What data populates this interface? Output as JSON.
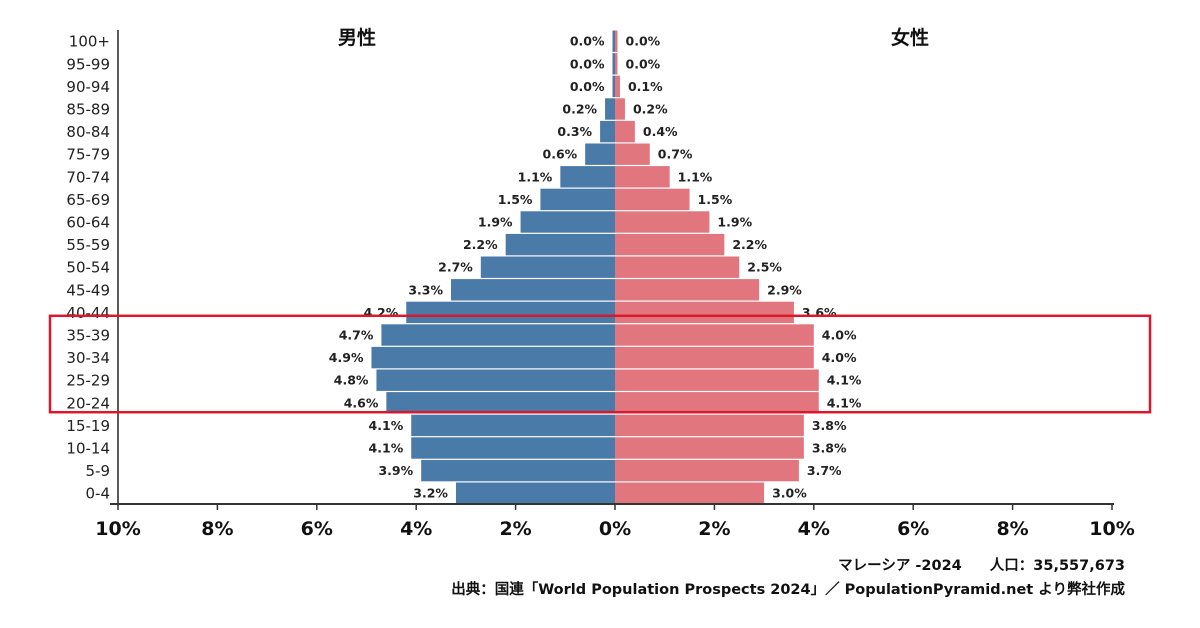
{
  "chart_data": {
    "type": "bar",
    "subtype": "population-pyramid",
    "title": "マレーシア -2024",
    "population_label": "人口：35,557,673",
    "country": "マレーシア",
    "year": "2024",
    "left_label": "男性",
    "right_label": "女性",
    "categories": [
      "100+",
      "95-99",
      "90-94",
      "85-89",
      "80-84",
      "75-79",
      "70-74",
      "65-69",
      "60-64",
      "55-59",
      "50-54",
      "45-49",
      "40-44",
      "35-39",
      "30-34",
      "25-29",
      "20-24",
      "15-19",
      "10-14",
      "5-9",
      "0-4"
    ],
    "series": [
      {
        "name": "男性",
        "side": "left",
        "color": "#4a7aa8",
        "values": [
          0.0,
          0.0,
          0.0,
          0.2,
          0.3,
          0.6,
          1.1,
          1.5,
          1.9,
          2.2,
          2.7,
          3.3,
          4.2,
          4.7,
          4.9,
          4.8,
          4.6,
          4.1,
          4.1,
          3.9,
          3.2
        ]
      },
      {
        "name": "女性",
        "side": "right",
        "color": "#e2767f",
        "values": [
          0.0,
          0.0,
          0.1,
          0.2,
          0.4,
          0.7,
          1.1,
          1.5,
          1.9,
          2.2,
          2.5,
          2.9,
          3.6,
          4.0,
          4.0,
          4.1,
          4.1,
          3.8,
          3.8,
          3.7,
          3.0
        ]
      }
    ],
    "x_ticks": [
      "10%",
      "8%",
      "6%",
      "4%",
      "2%",
      "0%",
      "2%",
      "4%",
      "6%",
      "8%",
      "10%"
    ],
    "xlim": [
      -10,
      10
    ],
    "xlabel": "",
    "ylabel": "",
    "grid": false,
    "highlight": {
      "categories": [
        "35-39",
        "30-34",
        "25-29",
        "20-24"
      ],
      "color": "#d9182d"
    }
  },
  "footer": {
    "title": "マレーシア -2024",
    "population": "人口：35,557,673",
    "source": "出典：国連「World Population Prospects 2024」／ PopulationPyramid.net より弊社作成"
  }
}
